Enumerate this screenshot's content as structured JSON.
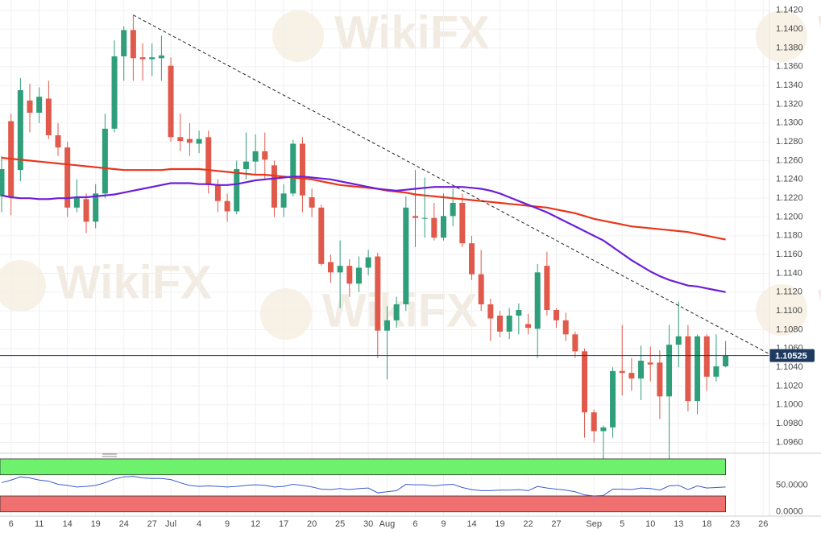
{
  "chart_data": [
    {
      "type": "candlestick",
      "watermark": "WikiFX",
      "categories": [
        null,
        "6",
        null,
        null,
        "11",
        null,
        null,
        "14",
        null,
        null,
        "19",
        null,
        null,
        "24",
        null,
        null,
        "27",
        null,
        "Jul",
        null,
        null,
        "4",
        null,
        null,
        "9",
        null,
        null,
        "12",
        null,
        null,
        "17",
        null,
        null,
        "20",
        null,
        null,
        "25",
        null,
        null,
        "30",
        null,
        "Aug",
        null,
        null,
        "6",
        null,
        null,
        "9",
        null,
        null,
        "14",
        null,
        null,
        "19",
        null,
        null,
        "22",
        null,
        null,
        "27",
        null,
        null,
        null,
        "Sep",
        null,
        null,
        "5",
        null,
        null,
        "10",
        null,
        null,
        "13",
        null,
        null,
        "18",
        null,
        null,
        "23",
        null,
        null,
        "26"
      ],
      "open": [
        1.1222,
        1.1302,
        1.125,
        1.1324,
        1.1311,
        1.1326,
        1.1287,
        1.1274,
        1.121,
        1.1219,
        1.1195,
        1.1225,
        1.1294,
        1.1371,
        1.1399,
        1.137,
        1.1368,
        1.1369,
        1.1361,
        1.1285,
        1.1283,
        1.1278,
        1.1285,
        1.1234,
        1.1217,
        1.1206,
        1.1251,
        1.1259,
        1.127,
        1.1255,
        1.121,
        1.1225,
        1.1278,
        1.1221,
        1.121,
        1.1152,
        1.1141,
        1.1148,
        1.1129,
        1.1146,
        1.1158,
        1.1079,
        1.109,
        1.1107,
        1.1201,
        1.1199,
        1.1199,
        1.1178,
        1.1201,
        1.1215,
        1.1172,
        1.1139,
        1.1107,
        1.1095,
        1.1078,
        1.1095,
        1.1086,
        1.1081,
        1.1148,
        1.1101,
        1.109,
        1.1075,
        1.1057,
        1.0992,
        1.0972,
        1.0976,
        1.1036,
        1.1034,
        1.1028,
        1.1045,
        1.1045,
        1.1009,
        1.1064,
        1.1073,
        1.1004,
        1.1073,
        1.103,
        1.1041,
        null,
        null,
        null,
        null
      ],
      "high": [
        1.1265,
        1.131,
        1.1348,
        1.1342,
        1.1338,
        1.1345,
        1.13,
        1.128,
        1.124,
        1.1225,
        1.1235,
        1.131,
        1.1388,
        1.1403,
        1.1415,
        1.1385,
        1.1385,
        1.1393,
        1.137,
        1.131,
        1.13,
        1.1292,
        1.1292,
        1.124,
        1.1225,
        1.126,
        1.129,
        1.1288,
        1.129,
        1.126,
        1.1235,
        1.1282,
        1.1285,
        1.123,
        1.1213,
        1.116,
        1.1175,
        1.1155,
        1.1158,
        1.1165,
        1.1162,
        1.1105,
        1.1115,
        1.1222,
        1.125,
        1.1242,
        1.1215,
        1.1225,
        1.123,
        1.1225,
        1.118,
        1.1165,
        1.1113,
        1.11,
        1.1103,
        1.1108,
        1.1097,
        1.115,
        1.1163,
        1.1103,
        1.1098,
        1.1078,
        1.106,
        1.0995,
        1.0978,
        1.104,
        1.1085,
        1.105,
        1.1063,
        1.1062,
        1.1058,
        1.1085,
        1.111,
        1.1085,
        1.1075,
        1.1075,
        1.1075,
        1.1068,
        null,
        null,
        null,
        null
      ],
      "low": [
        1.1205,
        1.1202,
        1.1238,
        1.129,
        1.13,
        1.1283,
        1.1265,
        1.12,
        1.1205,
        1.1183,
        1.1188,
        1.122,
        1.129,
        1.1345,
        1.1345,
        1.1345,
        1.135,
        1.1345,
        1.128,
        1.127,
        1.1265,
        1.1268,
        1.1225,
        1.1205,
        1.1195,
        1.1203,
        1.124,
        1.1245,
        1.124,
        1.12,
        1.12,
        1.1222,
        1.1205,
        1.12,
        1.1148,
        1.113,
        1.1103,
        1.1115,
        1.112,
        1.1138,
        1.105,
        1.1027,
        1.1082,
        1.11,
        1.1168,
        1.1178,
        1.1175,
        1.1175,
        1.119,
        1.1168,
        1.1133,
        1.11,
        1.1068,
        1.1072,
        1.107,
        1.1075,
        1.1075,
        1.105,
        1.1095,
        1.1082,
        1.1068,
        1.105,
        1.0965,
        1.096,
        1.0927,
        1.0965,
        1.101,
        1.1015,
        1.1005,
        1.1025,
        1.0985,
        1.0927,
        1.104,
        1.0993,
        1.099,
        1.1015,
        1.1025,
        1.104,
        null,
        null,
        null,
        null
      ],
      "close": [
        1.1251,
        1.1221,
        1.1335,
        1.1311,
        1.1328,
        1.1287,
        1.1274,
        1.121,
        1.1221,
        1.1195,
        1.1225,
        1.1294,
        1.1371,
        1.1399,
        1.1369,
        1.1368,
        1.137,
        1.1372,
        1.1285,
        1.1281,
        1.1279,
        1.1283,
        1.1234,
        1.1217,
        1.1206,
        1.1251,
        1.1259,
        1.127,
        1.1261,
        1.121,
        1.1225,
        1.1278,
        1.1223,
        1.121,
        1.115,
        1.1141,
        1.1148,
        1.1129,
        1.1146,
        1.1157,
        1.1079,
        1.109,
        1.1107,
        1.121,
        1.1199,
        1.1199,
        1.1178,
        1.1201,
        1.1215,
        1.1172,
        1.1139,
        1.1107,
        1.1092,
        1.1078,
        1.1095,
        1.1101,
        1.1082,
        1.1141,
        1.1101,
        1.109,
        1.1075,
        1.1057,
        1.0992,
        1.0972,
        1.0976,
        1.1036,
        1.1034,
        1.1028,
        1.1047,
        1.1043,
        1.1009,
        1.1064,
        1.1073,
        1.1004,
        1.1073,
        1.103,
        1.1041,
        1.10525,
        null,
        null,
        null,
        null
      ],
      "up_color": "#2f9e7a",
      "down_color": "#e0594b",
      "series": [
        {
          "color": "#e8361c",
          "values": [
            1.1263,
            1.1262,
            1.1261,
            1.126,
            1.1259,
            1.1258,
            1.1257,
            1.1256,
            1.1255,
            1.1254,
            1.1253,
            1.1252,
            1.1251,
            1.125,
            1.125,
            1.125,
            1.125,
            1.125,
            1.1251,
            1.1251,
            1.1251,
            1.1251,
            1.125,
            1.1249,
            1.1248,
            1.1247,
            1.1246,
            1.1245,
            1.1245,
            1.1244,
            1.1243,
            1.1242,
            1.1241,
            1.124,
            1.1238,
            1.1236,
            1.1234,
            1.1233,
            1.1232,
            1.1231,
            1.123,
            1.1228,
            1.1227,
            1.1226,
            1.1224,
            1.1223,
            1.1222,
            1.1221,
            1.122,
            1.1219,
            1.1218,
            1.1217,
            1.1216,
            1.1215,
            1.1214,
            1.1213,
            1.1212,
            1.1211,
            1.121,
            1.1208,
            1.1206,
            1.1204,
            1.1201,
            1.1198,
            1.1196,
            1.1194,
            1.1192,
            1.119,
            1.1189,
            1.1188,
            1.1187,
            1.1186,
            1.1185,
            1.1184,
            1.1182,
            1.118,
            1.1178,
            1.1176,
            null,
            null,
            null,
            null
          ]
        },
        {
          "color": "#6b1fd8",
          "values": [
            1.1223,
            1.1221,
            1.122,
            1.122,
            1.1219,
            1.1219,
            1.122,
            1.122,
            1.1221,
            1.1221,
            1.1222,
            1.1223,
            1.1224,
            1.1226,
            1.1228,
            1.123,
            1.1232,
            1.1234,
            1.1236,
            1.1236,
            1.1236,
            1.1235,
            1.1235,
            1.1234,
            1.1234,
            1.1235,
            1.1237,
            1.1239,
            1.124,
            1.1241,
            1.1242,
            1.1243,
            1.1243,
            1.1242,
            1.1241,
            1.124,
            1.1238,
            1.1236,
            1.1234,
            1.1232,
            1.123,
            1.1229,
            1.1228,
            1.1229,
            1.123,
            1.1231,
            1.1232,
            1.1232,
            1.1232,
            1.1232,
            1.1231,
            1.123,
            1.1228,
            1.1225,
            1.1221,
            1.1217,
            1.1213,
            1.1209,
            1.1205,
            1.12,
            1.1195,
            1.119,
            1.1185,
            1.118,
            1.1175,
            1.1168,
            1.1161,
            1.1154,
            1.1148,
            1.1142,
            1.1137,
            1.1133,
            1.113,
            1.1127,
            1.1126,
            1.1124,
            1.1122,
            1.112,
            null,
            null,
            null,
            null
          ]
        }
      ],
      "trendline": {
        "x": [
          14,
          77
        ],
        "y": [
          1.1415,
          1.1079
        ],
        "color": "#222222"
      },
      "last_price": 1.10525,
      "last_price_color": "#1e3a5f",
      "ylim": [
        1.0951,
        1.1431
      ],
      "yticks": [
        {
          "value": 1.096,
          "label": "1.0960"
        },
        {
          "value": 1.098,
          "label": "1.0980"
        },
        {
          "value": 1.1,
          "label": "1.1000"
        },
        {
          "value": 1.102,
          "label": "1.1020"
        },
        {
          "value": 1.104,
          "label": "1.1040"
        },
        {
          "value": 1.106,
          "label": "1.1060"
        },
        {
          "value": 1.108,
          "label": "1.1080"
        },
        {
          "value": 1.11,
          "label": "1.1100"
        },
        {
          "value": 1.112,
          "label": "1.1120"
        },
        {
          "value": 1.114,
          "label": "1.1140"
        },
        {
          "value": 1.116,
          "label": "1.1160"
        },
        {
          "value": 1.118,
          "label": "1.1180"
        },
        {
          "value": 1.12,
          "label": "1.1200"
        },
        {
          "value": 1.122,
          "label": "1.1220"
        },
        {
          "value": 1.124,
          "label": "1.1240"
        },
        {
          "value": 1.126,
          "label": "1.1260"
        },
        {
          "value": 1.128,
          "label": "1.1280"
        },
        {
          "value": 1.13,
          "label": "1.1300"
        },
        {
          "value": 1.132,
          "label": "1.1320"
        },
        {
          "value": 1.134,
          "label": "1.1340"
        },
        {
          "value": 1.136,
          "label": "1.1360"
        },
        {
          "value": 1.138,
          "label": "1.1380"
        },
        {
          "value": 1.14,
          "label": "1.1400"
        },
        {
          "value": 1.142,
          "label": "1.1420"
        }
      ],
      "grid": true
    },
    {
      "type": "line",
      "series": [
        {
          "color": "#3a5bd0",
          "values": [
            55,
            60,
            66,
            64,
            60,
            58,
            52,
            50,
            47,
            48,
            50,
            55,
            62,
            66,
            67,
            64,
            63,
            63,
            61,
            55,
            50,
            48,
            49,
            48,
            47,
            48,
            50,
            51,
            50,
            47,
            48,
            52,
            50,
            47,
            43,
            42,
            44,
            42,
            44,
            45,
            36,
            38,
            40,
            52,
            51,
            51,
            49,
            51,
            52,
            46,
            42,
            40,
            40,
            41,
            41,
            42,
            40,
            48,
            45,
            43,
            41,
            38,
            32,
            30,
            31,
            43,
            43,
            42,
            45,
            44,
            41,
            49,
            50,
            42,
            49,
            45,
            46,
            47,
            null,
            null,
            null,
            null
          ]
        }
      ],
      "bands": [
        {
          "range": [
            70,
            100
          ],
          "color": "#6ef26e"
        },
        {
          "range": [
            0,
            30
          ],
          "color": "#f07070"
        }
      ],
      "ylim": [
        -8,
        106
      ],
      "yticks": [
        {
          "value": 0,
          "label": "0.0000"
        },
        {
          "value": 50,
          "label": "50.0000"
        }
      ]
    }
  ]
}
